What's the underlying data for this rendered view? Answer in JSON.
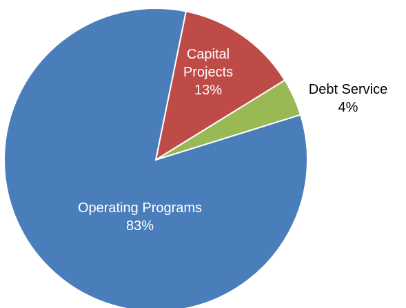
{
  "chart_data": {
    "type": "pie",
    "categories": [
      "Capital Projects",
      "Debt Service",
      "Operating Programs"
    ],
    "values": [
      13,
      4,
      83
    ],
    "value_labels": [
      "13%",
      "4%",
      "83%"
    ],
    "colors": [
      "#be4b48",
      "#98b954",
      "#4a7ebb"
    ]
  }
}
